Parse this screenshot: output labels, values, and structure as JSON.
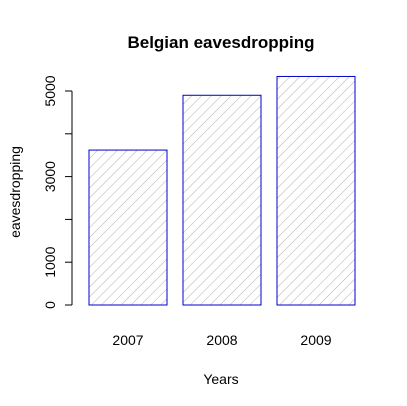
{
  "chart_data": {
    "type": "bar",
    "title": "Belgian eavesdropping",
    "xlabel": "Years",
    "ylabel": "eavesdropping",
    "categories": [
      "2007",
      "2008",
      "2009"
    ],
    "values": [
      3620,
      4900,
      5340
    ],
    "ylim": [
      0,
      5600
    ],
    "yticks": [
      0,
      1000,
      2000,
      3000,
      4000,
      5000
    ],
    "ytick_labels": [
      "0",
      "1000",
      "",
      "3000",
      "",
      "5000"
    ],
    "grid": false,
    "legend": "none",
    "colors": {
      "bar_border": "#0000cd",
      "hatch": "#b0b0b0",
      "axis": "#000000"
    }
  }
}
